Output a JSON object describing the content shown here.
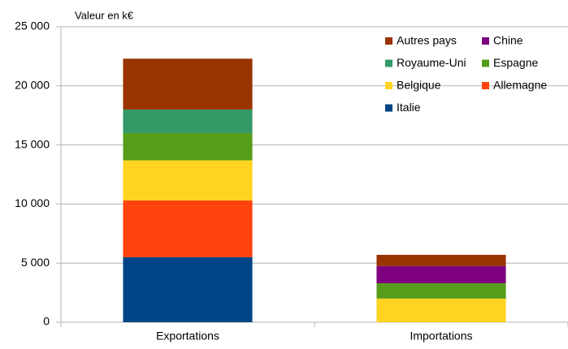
{
  "chart_data": {
    "type": "stacked_bar",
    "y_label": "Valeur en k€",
    "categories": [
      "Exportations",
      "Importations"
    ],
    "series": [
      {
        "name": "Italie",
        "color": "#004586",
        "values": [
          5500,
          0
        ]
      },
      {
        "name": "Allemagne",
        "color": "#ff420e",
        "values": [
          4800,
          0
        ]
      },
      {
        "name": "Belgique",
        "color": "#ffd320",
        "values": [
          3400,
          2000
        ]
      },
      {
        "name": "Espagne",
        "color": "#579d1c",
        "values": [
          2300,
          1300
        ]
      },
      {
        "name": "Royaume-Uni",
        "color": "#339966",
        "values": [
          2000,
          0
        ]
      },
      {
        "name": "Chine",
        "color": "#7e0080",
        "values": [
          0,
          1450
        ]
      },
      {
        "name": "Autres pays",
        "color": "#993300",
        "values": [
          4300,
          950
        ]
      }
    ],
    "ylim": [
      0,
      25000
    ],
    "yticks": [
      0,
      {
        "value": 5000,
        "label": "5 000"
      },
      {
        "value": 10000,
        "label": "10 000"
      },
      {
        "value": 15000,
        "label": "15 000"
      },
      {
        "value": 20000,
        "label": "20 000"
      },
      {
        "value": 25000,
        "label": "25 000"
      }
    ],
    "grid": true
  }
}
